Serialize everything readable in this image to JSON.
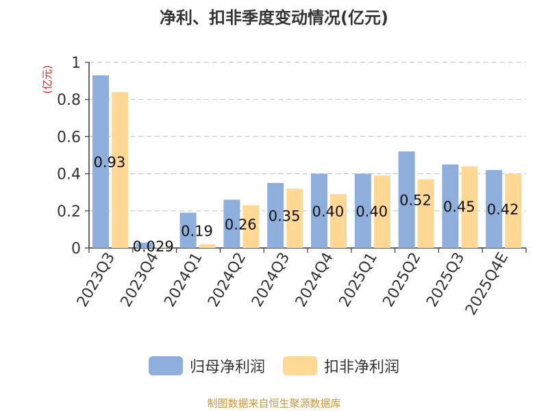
{
  "chart_data": {
    "type": "bar",
    "title": "净利、扣非季度变动情况(亿元)",
    "ylabel": "(亿元)",
    "xlabel": "",
    "categories": [
      "2023Q3",
      "2023Q4",
      "2024Q1",
      "2024Q2",
      "2024Q3",
      "2024Q4",
      "2025Q1",
      "2025Q2",
      "2025Q3",
      "2025Q4E"
    ],
    "series": [
      {
        "name": "归母净利润",
        "color": "#8EAEDC",
        "values": [
          0.93,
          0.029,
          0.19,
          0.26,
          0.35,
          0.4,
          0.4,
          0.52,
          0.45,
          0.42
        ]
      },
      {
        "name": "扣非净利润",
        "color": "#FFD896",
        "values": [
          0.84,
          0.005,
          0.02,
          0.23,
          0.32,
          0.29,
          0.39,
          0.37,
          0.44,
          0.4
        ]
      }
    ],
    "data_labels": [
      "0.93",
      "0.029",
      "0.19",
      "0.26",
      "0.35",
      "0.40",
      "0.40",
      "0.52",
      "0.45",
      "0.42"
    ],
    "ylim": [
      0,
      1
    ],
    "yticks": [
      "0",
      "0.2",
      "0.4",
      "0.6",
      "0.8",
      "1"
    ],
    "grid": true,
    "legend_position": "bottom"
  },
  "source": {
    "text": "制图数据来自恒生聚源数据库",
    "color": "#C8963E"
  }
}
